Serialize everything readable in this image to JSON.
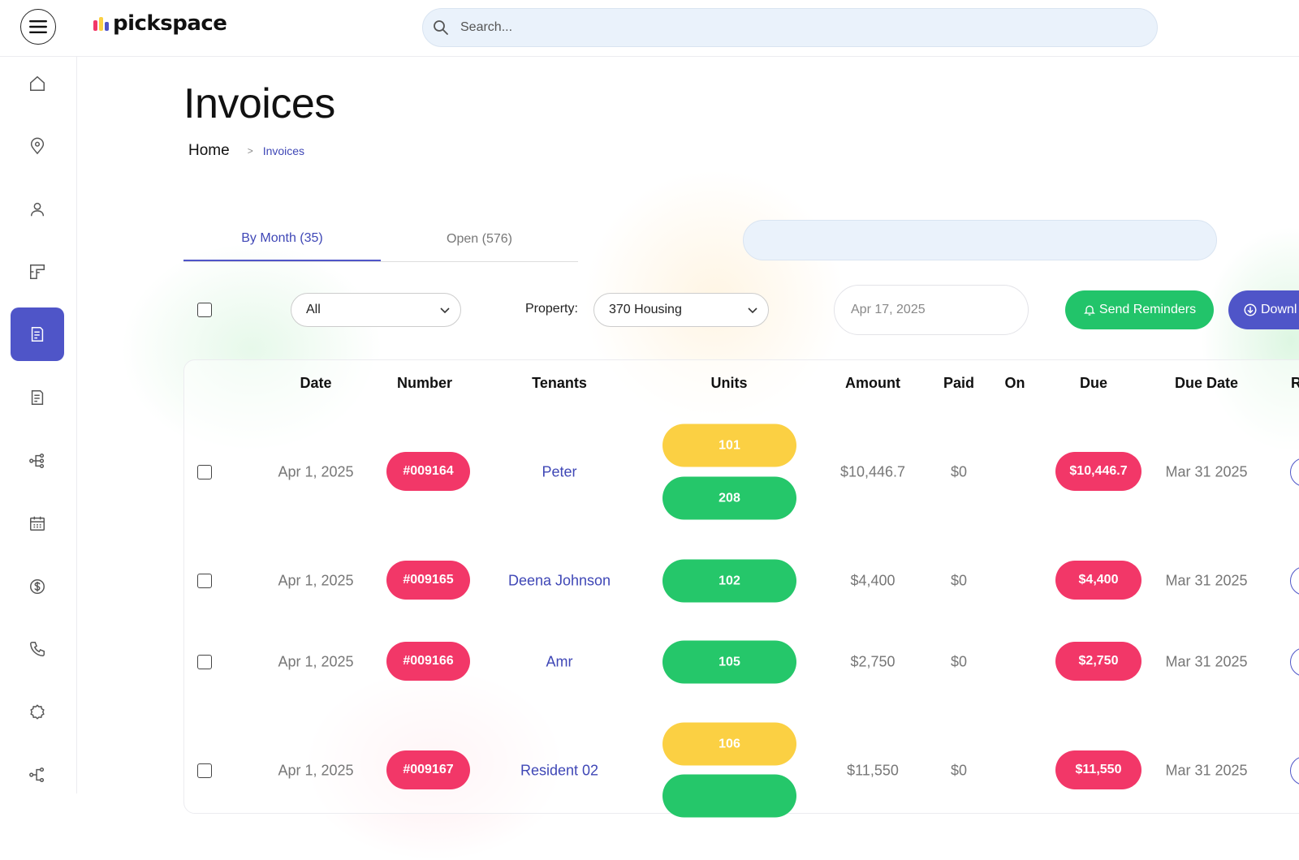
{
  "app": {
    "logo_text": "pickspace",
    "logo_colors": [
      "#f23768",
      "#fbd043",
      "#4f55c8"
    ]
  },
  "search": {
    "placeholder": "Search..."
  },
  "sidebar": {
    "items": [
      {
        "icon": "home-icon"
      },
      {
        "icon": "location-pin-icon"
      },
      {
        "icon": "user-icon"
      },
      {
        "icon": "floorplan-icon"
      },
      {
        "icon": "invoice-icon",
        "active": true
      },
      {
        "icon": "document-icon"
      },
      {
        "icon": "workflow-icon"
      },
      {
        "icon": "calendar-icon"
      },
      {
        "icon": "dollar-icon"
      },
      {
        "icon": "phone-icon"
      },
      {
        "icon": "settings-icon"
      },
      {
        "icon": "share-icon"
      }
    ]
  },
  "page": {
    "title": "Invoices"
  },
  "breadcrumb": {
    "home": "Home",
    "separator": ">",
    "current": "Invoices"
  },
  "tabs": [
    {
      "label": "By Month (35)",
      "active": true
    },
    {
      "label": "Open (576)",
      "active": false
    }
  ],
  "filters": {
    "status_select": "All",
    "property_label": "Property:",
    "property_select": "370 Housing",
    "date": "Apr 17, 2025",
    "send_reminders_label": "Send Reminders",
    "download_label": "Downl"
  },
  "table": {
    "columns": [
      "Date",
      "Number",
      "Tenants",
      "Units",
      "Amount",
      "Paid",
      "On",
      "Due",
      "Due Date",
      "Re"
    ],
    "rows": [
      {
        "date": "Apr 1, 2025",
        "number": "#009164",
        "tenant": "Peter",
        "units": [
          {
            "label": "101",
            "color": "yellow"
          },
          {
            "label": "208",
            "color": "green"
          }
        ],
        "amount": "$10,446.7",
        "paid": "$0",
        "on": "",
        "due": "$10,446.7",
        "due_date": "Mar 31 2025"
      },
      {
        "date": "Apr 1, 2025",
        "number": "#009165",
        "tenant": "Deena Johnson",
        "units": [
          {
            "label": "102",
            "color": "green"
          }
        ],
        "amount": "$4,400",
        "paid": "$0",
        "on": "",
        "due": "$4,400",
        "due_date": "Mar 31 2025"
      },
      {
        "date": "Apr 1, 2025",
        "number": "#009166",
        "tenant": "Amr",
        "units": [
          {
            "label": "105",
            "color": "green"
          }
        ],
        "amount": "$2,750",
        "paid": "$0",
        "on": "",
        "due": "$2,750",
        "due_date": "Mar 31 2025"
      },
      {
        "date": "Apr 1, 2025",
        "number": "#009167",
        "tenant": "Resident 02",
        "units": [
          {
            "label": "106",
            "color": "yellow"
          },
          {
            "label": "",
            "color": "green"
          }
        ],
        "amount": "$11,550",
        "paid": "$0",
        "on": "",
        "due": "$11,550",
        "due_date": "Mar 31 2025"
      }
    ]
  },
  "colors": {
    "accent": "#4f55c8",
    "danger": "#f23768",
    "success": "#25c76a",
    "warning": "#fbd043"
  }
}
